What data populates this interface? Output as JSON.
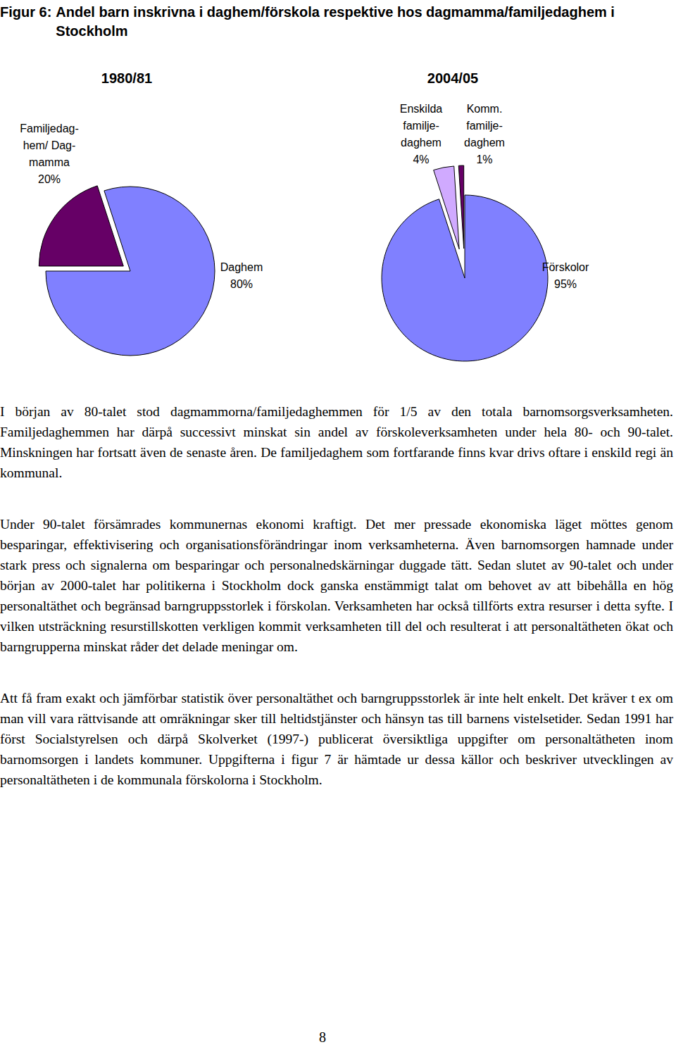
{
  "caption": {
    "label": "Figur 6:",
    "text": "Andel barn inskrivna i daghem/förskola respektive hos dagmamma/familjedaghem i Stockholm"
  },
  "chart_data": [
    {
      "type": "pie",
      "title": "1980/81",
      "categories": [
        "Familjedag-\nhem/ Dag-\nmamma",
        "Daghem"
      ],
      "values": [
        20,
        80
      ],
      "value_labels": [
        "20%",
        "80%"
      ],
      "colors": [
        "#660066",
        "#8080ff"
      ],
      "data_labels": true
    },
    {
      "type": "pie",
      "title": "2004/05",
      "categories": [
        "Förskolor",
        "Enskilda\nfamilje-\ndaghem",
        "Komm.\nfamilje-\ndaghem"
      ],
      "values": [
        95,
        4,
        1
      ],
      "value_labels": [
        "95%",
        "4%",
        "1%"
      ],
      "colors": [
        "#8080ff",
        "#d0aaff",
        "#660066"
      ],
      "data_labels": true
    }
  ],
  "paragraphs": [
    "I början av 80-talet stod dagmammorna/familjedaghemmen för 1/5 av den totala barnomsorgsverksamheten. Familjedaghemmen har därpå successivt minskat sin andel av förskoleverksamheten under hela 80- och 90-talet. Minskningen har fortsatt även de senaste åren. De familjedaghem som fortfarande finns kvar drivs oftare i enskild regi än kommunal.",
    "Under 90-talet försämrades kommunernas ekonomi kraftigt. Det mer pressade ekonomiska läget möttes genom besparingar, effektivisering och organisationsförändringar inom verksamheterna. Även barnomsorgen hamnade under stark press och signalerna om besparingar och personalnedskärningar duggade tätt. Sedan slutet av 90-talet och under början av 2000-talet har politikerna i Stockholm dock ganska enstämmigt talat om behovet av att bibehålla en hög personaltäthet och begränsad barngruppsstorlek i förskolan. Verksamheten har också tillförts extra resurser i detta syfte. I vilken utsträckning resurstillskotten verkligen kommit verksamheten till del och resulterat i att personaltätheten ökat och barngrupperna minskat råder det delade meningar om.",
    "Att få fram exakt och jämförbar statistik över personaltäthet och barngruppsstorlek är inte helt enkelt. Det kräver t ex om man vill vara rättvisande att omräkningar sker till heltidstjänster och hänsyn tas till barnens vistelsetider. Sedan 1991 har först Socialstyrelsen och därpå Skolverket (1997-) publicerat översiktliga uppgifter om personaltätheten inom barnomsorgen i landets kommuner. Uppgifterna i figur 7 är hämtade ur dessa källor och beskriver utvecklingen av personaltätheten i de kommunala förskolorna i Stockholm."
  ],
  "page_number": 8
}
